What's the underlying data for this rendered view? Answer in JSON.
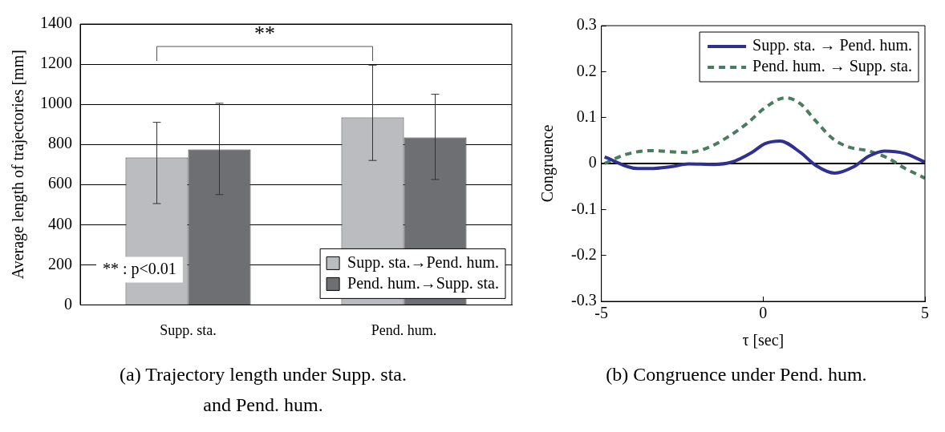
{
  "chart_data": [
    {
      "type": "bar",
      "title": "(a) Trajectory length under Supp. sta. and Pend. hum.",
      "ylabel": "Average length of trajectories [mm]",
      "categories": [
        "Supp. sta.",
        "Pend. hum."
      ],
      "series": [
        {
          "name": "Supp. sta.→Pend. hum.",
          "color": "#bbbcc0",
          "values": [
            735,
            935
          ],
          "errors": [
            [
              505,
              910
            ],
            [
              720,
              1195
            ]
          ]
        },
        {
          "name": "Pend. hum.→Supp. sta.",
          "color": "#6e6f73",
          "values": [
            775,
            835
          ],
          "errors": [
            [
              550,
              1005
            ],
            [
              625,
              1050
            ]
          ]
        }
      ],
      "ylim": [
        0,
        1400
      ],
      "yticks": [
        0,
        200,
        400,
        600,
        800,
        1000,
        1200,
        1400
      ],
      "grid": "y",
      "legend": "bottom right",
      "annotations": [
        "**",
        "** : p<0.01"
      ]
    },
    {
      "type": "line",
      "title": "(b) Congruence under Pend. hum.",
      "xlabel": "τ [sec]",
      "ylabel": "Congruence",
      "series": [
        {
          "name": "Supp. sta. → Pend. hum.",
          "color": "#2e3192",
          "line_style": "solid",
          "x": [
            -4.9,
            -3.88,
            -3.49,
            -2.86,
            -2.31,
            -1.53,
            -0.97,
            -0.35,
            0.05,
            0.52,
            1.15,
            1.62,
            2.21,
            2.8,
            3.27,
            3.74,
            4.37,
            5
          ],
          "values": [
            0.014,
            -0.011,
            -0.011,
            -0.007,
            -0.001,
            -0.002,
            0.003,
            0.024,
            0.043,
            0.049,
            0.024,
            -0.004,
            -0.021,
            -0.007,
            0.016,
            0.027,
            0.022,
            0.003
          ]
        },
        {
          "name": "Pend. hum. → Supp. sta.",
          "color": "#4a7c5f",
          "line_style": "dashed",
          "x": [
            -4.9,
            -4.28,
            -3.49,
            -2.39,
            -1.76,
            -1.13,
            -0.5,
            0.05,
            0.68,
            1.15,
            1.62,
            2.17,
            2.64,
            3.27,
            3.82,
            4.37,
            5
          ],
          "values": [
            0,
            0.019,
            0.028,
            0.024,
            0.033,
            0.056,
            0.087,
            0.121,
            0.143,
            0.13,
            0.093,
            0.053,
            0.036,
            0.027,
            0.013,
            -0.01,
            -0.032
          ]
        }
      ],
      "xlim": [
        -5,
        5
      ],
      "xticks": [
        -5,
        0,
        5
      ],
      "ylim": [
        -0.3,
        0.3
      ],
      "yticks": [
        -0.3,
        -0.2,
        -0.1,
        0,
        0.1,
        0.2,
        0.3
      ],
      "grid": false,
      "legend": "top right",
      "marker": "none",
      "ref_lines": [
        {
          "axis": "y",
          "value": 0,
          "color": "#000000"
        }
      ]
    }
  ]
}
